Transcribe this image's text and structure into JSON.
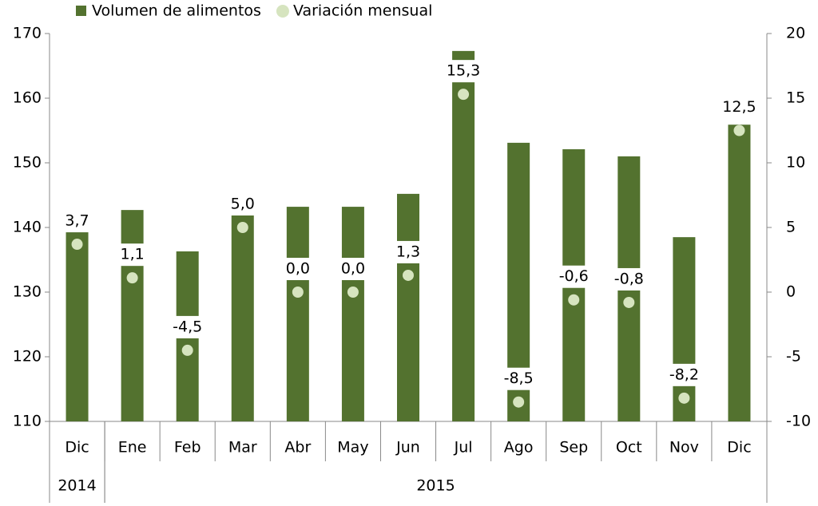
{
  "chart_data": {
    "type": "bar-dot",
    "categories": [
      "Dic",
      "Ene",
      "Feb",
      "Mar",
      "Abr",
      "May",
      "Jun",
      "Jul",
      "Ago",
      "Sep",
      "Oct",
      "Nov",
      "Dic"
    ],
    "groups": [
      {
        "label": "2014",
        "count": 1
      },
      {
        "label": "2015",
        "count": 12
      }
    ],
    "series": [
      {
        "name": "Volumen de alimentos",
        "color": "#53722f",
        "values": [
          141.2,
          142.7,
          136.3,
          143.2,
          143.2,
          143.2,
          145.2,
          167.3,
          153.1,
          152.1,
          151.0,
          138.5,
          155.9
        ]
      },
      {
        "name": "Variación mensual",
        "color": "#d6e4bf",
        "axis": "y2",
        "values": [
          3.7,
          1.1,
          -4.5,
          5.0,
          0.0,
          0.0,
          1.3,
          15.3,
          -8.5,
          -0.6,
          -0.8,
          -8.2,
          12.5
        ],
        "value_labels": [
          "3,7",
          "1,1",
          "-4,5",
          "5,0",
          "0,0",
          "0,0",
          "1,3",
          "15,3",
          "-8,5",
          "-0,6",
          "-0,8",
          "-8,2",
          "12,5"
        ]
      }
    ],
    "ylim": [
      110,
      170
    ],
    "yticks": [
      110,
      120,
      130,
      140,
      150,
      160,
      170
    ],
    "y2lim": [
      -10,
      20
    ],
    "y2ticks": [
      -10,
      -5,
      0,
      5,
      10,
      15,
      20
    ]
  }
}
